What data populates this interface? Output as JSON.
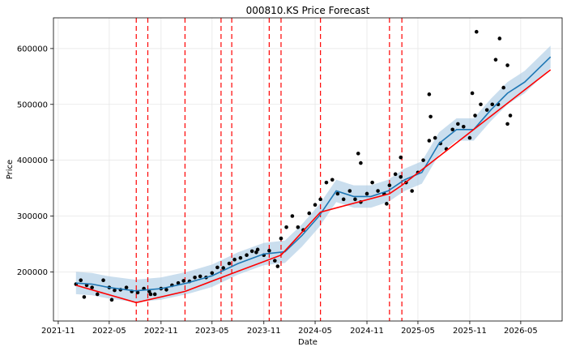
{
  "chart_data": {
    "type": "line",
    "title": "000810.KS Price Forecast",
    "xlabel": "Date",
    "ylabel": "Price",
    "xlim": [
      "2021-10-15",
      "2026-09-25"
    ],
    "ylim": [
      112000,
      655000
    ],
    "x_ticks": [
      "2021-11",
      "2022-05",
      "2022-11",
      "2023-05",
      "2023-11",
      "2024-05",
      "2024-11",
      "2025-05",
      "2025-11",
      "2026-05"
    ],
    "y_ticks": [
      200000,
      300000,
      400000,
      500000,
      600000
    ],
    "y_tick_labels": [
      "200000",
      "300000",
      "400000",
      "500000",
      "600000"
    ],
    "grid": true,
    "colors": {
      "actual": "#000000",
      "forecast": "#1f77b4",
      "interval": "#a6c8e3",
      "trend": "#ff0000",
      "changepoint": "#ff0000"
    },
    "changepoints": [
      "2022-08-05",
      "2022-09-15",
      "2023-01-25",
      "2023-06-02",
      "2023-07-10",
      "2023-11-20",
      "2024-01-01",
      "2024-05-20",
      "2025-01-20",
      "2025-03-05"
    ],
    "trend": {
      "x": [
        "2022-01-03",
        "2022-08-05",
        "2023-01-25",
        "2023-07-10",
        "2024-01-01",
        "2024-05-20",
        "2025-01-20",
        "2025-03-05",
        "2026-08-15"
      ],
      "y": [
        176000,
        145000,
        165000,
        197000,
        230000,
        307000,
        340000,
        355000,
        562000
      ]
    },
    "forecast": {
      "x": [
        "2022-01-03",
        "2022-03-01",
        "2022-05-01",
        "2022-08-01",
        "2022-11-01",
        "2023-02-01",
        "2023-05-01",
        "2023-08-01",
        "2023-11-01",
        "2024-01-15",
        "2024-03-15",
        "2024-05-15",
        "2024-07-15",
        "2024-09-15",
        "2024-11-15",
        "2025-01-15",
        "2025-03-15",
        "2025-05-15",
        "2025-07-15",
        "2025-09-15",
        "2025-11-15",
        "2026-01-15",
        "2026-03-15",
        "2026-05-15",
        "2026-08-15"
      ],
      "y": [
        180000,
        178000,
        172000,
        166000,
        170000,
        180000,
        193000,
        215000,
        232000,
        236000,
        265000,
        300000,
        345000,
        335000,
        335000,
        345000,
        365000,
        378000,
        430000,
        455000,
        455000,
        490000,
        520000,
        540000,
        585000
      ],
      "band": 20000
    },
    "actual": {
      "x": [
        "2022-01-03",
        "2022-01-20",
        "2022-02-10",
        "2022-03-01",
        "2022-03-20",
        "2022-04-10",
        "2022-05-01",
        "2022-05-20",
        "2022-06-10",
        "2022-07-01",
        "2022-07-20",
        "2022-08-10",
        "2022-09-01",
        "2022-09-20",
        "2022-10-10",
        "2022-11-01",
        "2022-11-20",
        "2022-12-10",
        "2023-01-01",
        "2023-01-20",
        "2023-02-10",
        "2023-03-01",
        "2023-03-20",
        "2023-04-10",
        "2023-05-01",
        "2023-05-20",
        "2023-06-10",
        "2023-07-01",
        "2023-07-20",
        "2023-08-10",
        "2023-09-01",
        "2023-09-20",
        "2023-10-10",
        "2023-11-01",
        "2023-11-20",
        "2023-12-10",
        "2024-01-01",
        "2024-01-20",
        "2024-02-10",
        "2024-03-01",
        "2024-03-20",
        "2024-04-10",
        "2024-05-01",
        "2024-05-20",
        "2024-06-10",
        "2024-07-01",
        "2024-07-20",
        "2024-08-10",
        "2024-09-01",
        "2024-09-20",
        "2024-10-10",
        "2024-11-01",
        "2024-11-20",
        "2024-12-10",
        "2025-01-01",
        "2025-01-20",
        "2025-02-10",
        "2025-03-01",
        "2025-03-20",
        "2025-04-10",
        "2025-05-01",
        "2025-05-20",
        "2025-06-10",
        "2025-07-01",
        "2025-07-20",
        "2025-08-10",
        "2025-09-01",
        "2025-09-20",
        "2025-10-10",
        "2025-11-01",
        "2025-11-20",
        "2025-12-10",
        "2026-01-01",
        "2026-01-20",
        "2026-02-10",
        "2026-03-01",
        "2026-03-15",
        "2026-03-25"
      ],
      "y": [
        178000,
        185000,
        176000,
        172000,
        160000,
        185000,
        172000,
        167000,
        168000,
        172000,
        165000,
        163000,
        170000,
        165000,
        160000,
        170000,
        168000,
        176000,
        180000,
        184000,
        183000,
        190000,
        192000,
        190000,
        198000,
        208000,
        207000,
        215000,
        222000,
        225000,
        230000,
        237000,
        240000,
        230000,
        238000,
        220000,
        260000,
        280000,
        300000,
        280000,
        275000,
        305000,
        320000,
        330000,
        360000,
        365000,
        340000,
        330000,
        345000,
        330000,
        325000,
        340000,
        360000,
        345000,
        340000,
        355000,
        375000,
        370000,
        360000,
        345000,
        378000,
        400000,
        435000,
        440000,
        430000,
        420000,
        455000,
        465000,
        460000,
        440000,
        480000,
        500000,
        490000,
        500000,
        500000,
        530000,
        570000,
        480000
      ]
    },
    "outliers": {
      "x": [
        "2022-02-01",
        "2022-05-10",
        "2022-09-25",
        "2023-10-05",
        "2023-12-20",
        "2024-10-01",
        "2024-10-10",
        "2025-01-10",
        "2025-03-01",
        "2025-06-10",
        "2025-06-15",
        "2025-11-10",
        "2025-11-25",
        "2026-02-01",
        "2026-02-15",
        "2026-03-15"
      ],
      "y": [
        155000,
        150000,
        160000,
        235000,
        210000,
        412000,
        395000,
        322000,
        405000,
        518000,
        478000,
        520000,
        630000,
        580000,
        618000,
        465000
      ]
    }
  }
}
